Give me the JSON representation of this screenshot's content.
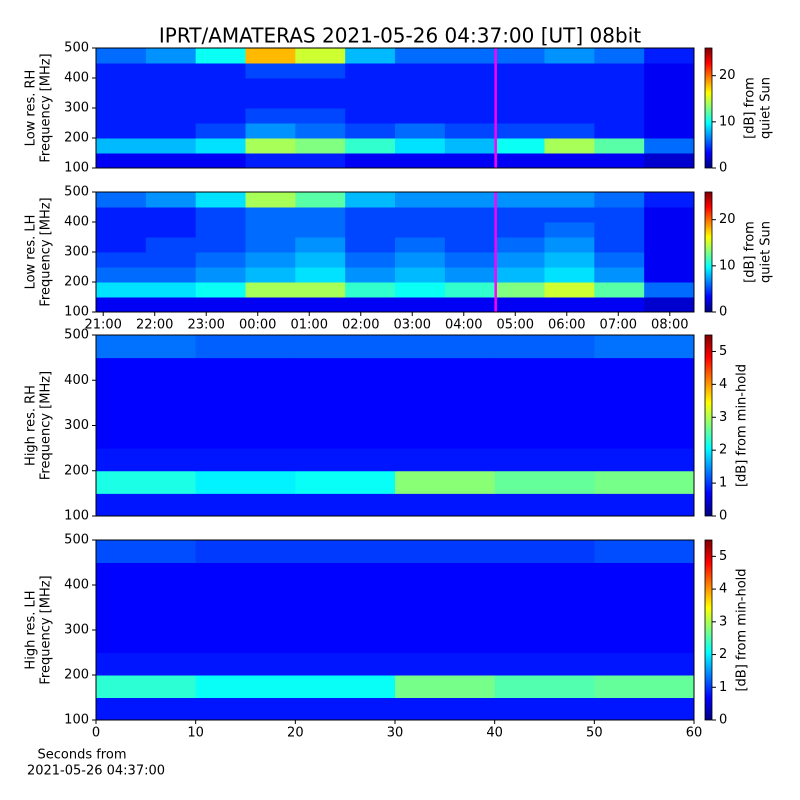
{
  "title": "IPRT/AMATERAS 2021-05-26 04:37:00 [UT]   08bit",
  "chart_data": [
    {
      "type": "heatmap",
      "ylabel": [
        "Low res. RH",
        "Frequency [MHz]"
      ],
      "xlim": [
        20.86,
        32.47
      ],
      "ylim": [
        100,
        500
      ],
      "yticks": [
        100,
        200,
        300,
        400,
        500
      ],
      "marker_x": 28.62,
      "marker_color": "#ff00ff",
      "zlim": [
        0,
        26
      ],
      "zticks": [
        0,
        10,
        20
      ],
      "colorbar_label": [
        "[dB] from",
        "quiet Sun"
      ],
      "z": [
        [
          3,
          3,
          3,
          4,
          4,
          3,
          3,
          3,
          3,
          3,
          3,
          2
        ],
        [
          8,
          8,
          9,
          14,
          13,
          11,
          9,
          8,
          10,
          14,
          12,
          6
        ],
        [
          4,
          4,
          5,
          7,
          6,
          5,
          6,
          5,
          5,
          5,
          4,
          3
        ],
        [
          4,
          4,
          4,
          5,
          5,
          4,
          4,
          4,
          4,
          4,
          4,
          3
        ],
        [
          4,
          4,
          4,
          4,
          4,
          4,
          4,
          4,
          4,
          4,
          4,
          3
        ],
        [
          4,
          4,
          4,
          4,
          4,
          4,
          4,
          4,
          4,
          4,
          4,
          3
        ],
        [
          4,
          4,
          4,
          5,
          5,
          4,
          4,
          4,
          4,
          4,
          4,
          3
        ],
        [
          6,
          7,
          10,
          18,
          15,
          8,
          6,
          6,
          6,
          7,
          6,
          4
        ]
      ]
    },
    {
      "type": "heatmap",
      "ylabel": [
        "Low res. LH",
        "Frequency [MHz]"
      ],
      "xlim": [
        20.86,
        32.47
      ],
      "xticks": [
        {
          "value": 21,
          "label": "21:00"
        },
        {
          "value": 22,
          "label": "22:00"
        },
        {
          "value": 23,
          "label": "23:00"
        },
        {
          "value": 24,
          "label": "00:00"
        },
        {
          "value": 25,
          "label": "01:00"
        },
        {
          "value": 26,
          "label": "02:00"
        },
        {
          "value": 27,
          "label": "03:00"
        },
        {
          "value": 28,
          "label": "04:00"
        },
        {
          "value": 29,
          "label": "05:00"
        },
        {
          "value": 30,
          "label": "06:00"
        },
        {
          "value": 31,
          "label": "07:00"
        },
        {
          "value": 32,
          "label": "08:00"
        }
      ],
      "ylim": [
        100,
        500
      ],
      "yticks": [
        100,
        200,
        300,
        400,
        500
      ],
      "marker_x": 28.62,
      "marker_color": "#ff00ff",
      "zlim": [
        0,
        26
      ],
      "zticks": [
        0,
        10,
        20
      ],
      "colorbar_label": [
        "[dB] from",
        "quiet Sun"
      ],
      "z": [
        [
          3,
          3,
          3,
          3,
          3,
          3,
          3,
          3,
          3,
          3,
          3,
          2
        ],
        [
          9,
          9,
          10,
          14,
          14,
          11,
          10,
          11,
          13,
          15,
          12,
          6
        ],
        [
          6,
          6,
          7,
          8,
          9,
          7,
          8,
          7,
          8,
          9,
          7,
          3
        ],
        [
          5,
          5,
          6,
          7,
          8,
          6,
          7,
          6,
          7,
          8,
          6,
          3
        ],
        [
          4,
          5,
          5,
          6,
          7,
          5,
          6,
          5,
          6,
          7,
          5,
          3
        ],
        [
          4,
          4,
          5,
          6,
          6,
          5,
          5,
          5,
          5,
          6,
          5,
          3
        ],
        [
          4,
          4,
          5,
          6,
          6,
          5,
          5,
          5,
          5,
          5,
          5,
          3
        ],
        [
          6,
          7,
          9,
          14,
          12,
          8,
          7,
          7,
          7,
          7,
          6,
          4
        ]
      ]
    },
    {
      "type": "heatmap",
      "ylabel": [
        "High res. RH",
        "Frequency [MHz]"
      ],
      "xlim": [
        0,
        60
      ],
      "ylim": [
        100,
        500
      ],
      "yticks": [
        100,
        200,
        300,
        400,
        500
      ],
      "zlim": [
        0,
        5.5
      ],
      "zticks": [
        0,
        1,
        2,
        3,
        4,
        5
      ],
      "colorbar_label": "[dB] from min-hold",
      "z": [
        [
          0.8,
          0.8,
          0.8,
          0.8,
          0.8,
          0.8
        ],
        [
          2.2,
          2.0,
          2.1,
          2.8,
          2.6,
          2.7
        ],
        [
          0.8,
          0.8,
          0.8,
          0.8,
          0.8,
          0.8
        ],
        [
          0.7,
          0.7,
          0.7,
          0.7,
          0.7,
          0.7
        ],
        [
          0.7,
          0.7,
          0.7,
          0.7,
          0.7,
          0.7
        ],
        [
          0.7,
          0.7,
          0.7,
          0.7,
          0.7,
          0.7
        ],
        [
          0.7,
          0.7,
          0.7,
          0.7,
          0.7,
          0.7
        ],
        [
          1.3,
          1.2,
          1.2,
          1.2,
          1.2,
          1.3
        ]
      ]
    },
    {
      "type": "heatmap",
      "ylabel": [
        "High res. LH",
        "Frequency [MHz]"
      ],
      "xlabel": [
        "Seconds from",
        "2021-05-26 04:37:00"
      ],
      "xlim": [
        0,
        60
      ],
      "xticks": [
        0,
        10,
        20,
        30,
        40,
        50,
        60
      ],
      "ylim": [
        100,
        500
      ],
      "yticks": [
        100,
        200,
        300,
        400,
        500
      ],
      "zlim": [
        0,
        5.5
      ],
      "zticks": [
        0,
        1,
        2,
        3,
        4,
        5
      ],
      "colorbar_label": "[dB] from min-hold",
      "z": [
        [
          0.8,
          0.8,
          0.8,
          0.8,
          0.8,
          0.8
        ],
        [
          2.3,
          2.1,
          2.1,
          2.7,
          2.5,
          2.6
        ],
        [
          0.8,
          0.8,
          0.8,
          0.8,
          0.8,
          0.8
        ],
        [
          0.7,
          0.7,
          0.7,
          0.7,
          0.7,
          0.7
        ],
        [
          0.7,
          0.7,
          0.7,
          0.7,
          0.7,
          0.7
        ],
        [
          0.7,
          0.7,
          0.7,
          0.7,
          0.7,
          0.7
        ],
        [
          0.7,
          0.7,
          0.7,
          0.7,
          0.7,
          0.7
        ],
        [
          1.1,
          1.0,
          1.0,
          1.0,
          1.0,
          1.1
        ]
      ]
    }
  ]
}
